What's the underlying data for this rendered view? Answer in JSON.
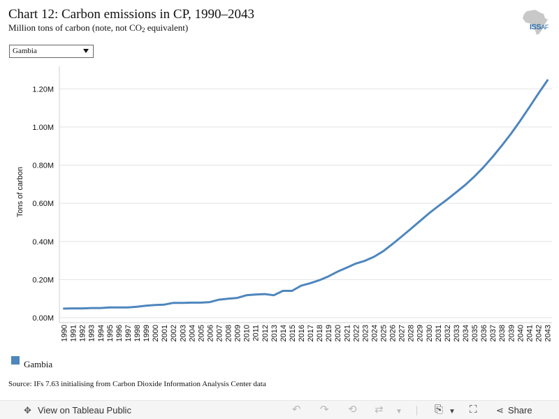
{
  "header": {
    "title": "Chart 12: Carbon emissions in CP, 1990–2043",
    "subtitle_pre": "Million tons of carbon (note, not CO",
    "subtitle_sub": "2",
    "subtitle_post": " equivalent)",
    "logo_text": "ISS",
    "logo_suffix": "AF"
  },
  "filter": {
    "selected": "Gambia"
  },
  "legend": {
    "label": "Gambia",
    "color": "#4e86bd"
  },
  "source": "Source: IFs 7.63 initialising from Carbon Dioxide Information Analysis Center data",
  "toolbar": {
    "view_label": "View on Tableau Public",
    "share_label": "Share",
    "icons": [
      "move-icon",
      "undo-icon",
      "redo-icon",
      "revert-icon",
      "refresh-icon",
      "download-icon",
      "fullscreen-icon",
      "share-icon"
    ]
  },
  "chart_data": {
    "type": "line",
    "title": "Chart 12: Carbon emissions in CP, 1990–2043",
    "ylabel": "Tons of carbon",
    "xlabel": "",
    "ylim": [
      0,
      1300000
    ],
    "y_ticks": [
      0,
      200000,
      400000,
      600000,
      800000,
      1000000,
      1200000
    ],
    "y_tick_labels": [
      "0.00M",
      "0.20M",
      "0.40M",
      "0.60M",
      "0.80M",
      "1.00M",
      "1.20M"
    ],
    "grid": true,
    "x": [
      1990,
      1991,
      1992,
      1993,
      1994,
      1995,
      1996,
      1997,
      1998,
      1999,
      2000,
      2001,
      2002,
      2003,
      2004,
      2005,
      2006,
      2007,
      2008,
      2009,
      2010,
      2011,
      2012,
      2013,
      2014,
      2015,
      2016,
      2017,
      2018,
      2019,
      2020,
      2021,
      2022,
      2023,
      2024,
      2025,
      2026,
      2027,
      2028,
      2029,
      2030,
      2031,
      2032,
      2033,
      2034,
      2035,
      2036,
      2037,
      2038,
      2039,
      2040,
      2041,
      2042,
      2043
    ],
    "series": [
      {
        "name": "Gambia",
        "color": "#4e86bd",
        "values": [
          48000,
          49000,
          49000,
          51000,
          51000,
          54000,
          54000,
          54000,
          58000,
          63000,
          67000,
          69000,
          78000,
          78000,
          79000,
          79000,
          82000,
          95000,
          100000,
          104000,
          118000,
          122000,
          124000,
          118000,
          141000,
          141000,
          168000,
          181000,
          197000,
          217000,
          242000,
          263000,
          284000,
          299000,
          320000,
          349000,
          386000,
          425000,
          465000,
          506000,
          547000,
          584000,
          620000,
          658000,
          697000,
          741000,
          790000,
          844000,
          903000,
          965000,
          1032000,
          1103000,
          1175000,
          1245000
        ]
      }
    ]
  }
}
